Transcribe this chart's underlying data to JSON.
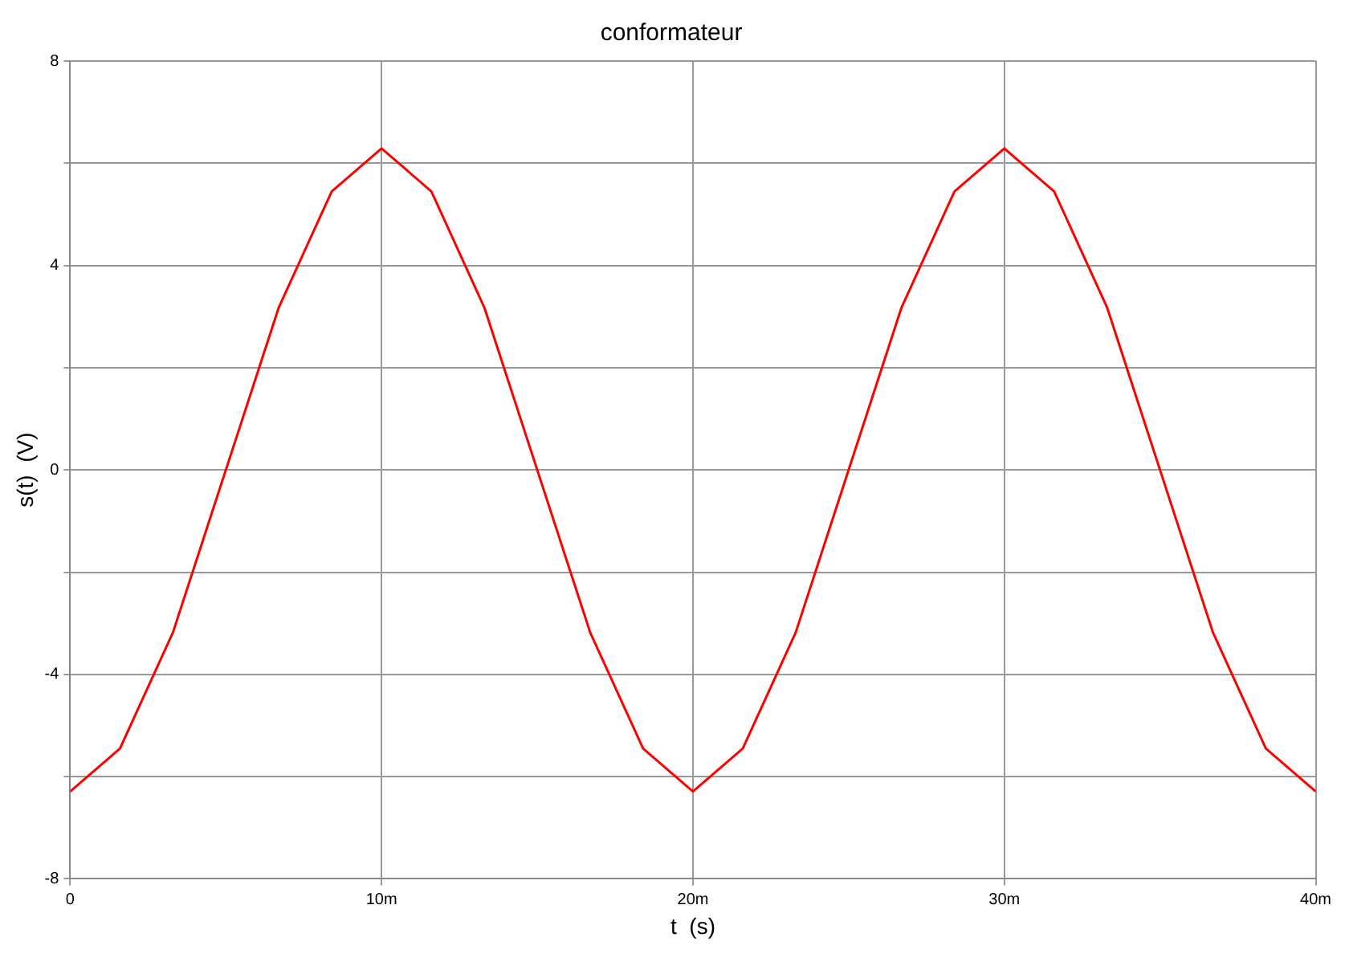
{
  "chart_data": {
    "type": "line",
    "title": "conformateur",
    "xlabel": "t  (s)",
    "ylabel": "s(t)  (V)",
    "x": [
      0,
      1.6,
      3.3,
      6.7,
      8.4,
      10,
      11.6,
      13.3,
      16.7,
      18.4,
      20,
      21.6,
      23.3,
      26.7,
      28.4,
      30,
      31.6,
      33.3,
      36.7,
      38.4,
      40
    ],
    "series": [
      {
        "color": "#ff0000",
        "values": [
          -6.29,
          -5.45,
          -3.18,
          3.18,
          5.45,
          6.29,
          5.45,
          3.18,
          -3.18,
          -5.45,
          -6.29,
          -5.45,
          -3.18,
          3.18,
          5.45,
          6.29,
          5.45,
          3.18,
          -3.18,
          -5.45,
          -6.29
        ]
      }
    ],
    "xlim": [
      0,
      40
    ],
    "xticks": [
      0,
      {
        "value": 10,
        "label": "10m"
      },
      {
        "value": 20,
        "label": "20m"
      },
      {
        "value": 30,
        "label": "30m"
      },
      {
        "value": 40,
        "label": "40m"
      }
    ],
    "ylim": [
      -8,
      8
    ],
    "yticks": [
      -8,
      {
        "value": -6,
        "label": null
      },
      -4,
      {
        "value": -2,
        "label": null
      },
      0,
      {
        "value": 2,
        "label": null
      },
      4,
      {
        "value": 6,
        "label": null
      },
      8
    ],
    "grid": true,
    "marker": "none",
    "line_style": "solid",
    "legend": false
  }
}
